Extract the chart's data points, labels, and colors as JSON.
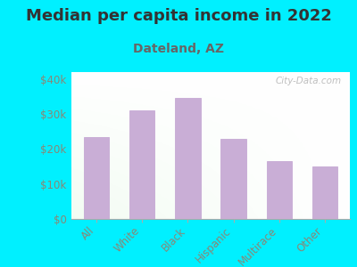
{
  "title": "Median per capita income in 2022",
  "subtitle": "Dateland, AZ",
  "categories": [
    "All",
    "White",
    "Black",
    "Hispanic",
    "Multirace",
    "Other"
  ],
  "values": [
    23500,
    31000,
    34500,
    23000,
    16500,
    15000
  ],
  "bar_color": "#c9aed6",
  "bar_edge_color": "#c0a0d0",
  "background_color": "#00f0ff",
  "title_color": "#333333",
  "subtitle_color": "#666666",
  "tick_color": "#888877",
  "ylim": [
    0,
    42000
  ],
  "yticks": [
    0,
    10000,
    20000,
    30000,
    40000
  ],
  "ytick_labels": [
    "$0",
    "$10k",
    "$20k",
    "$30k",
    "$40k"
  ],
  "title_fontsize": 13,
  "subtitle_fontsize": 10,
  "watermark": "City-Data.com"
}
